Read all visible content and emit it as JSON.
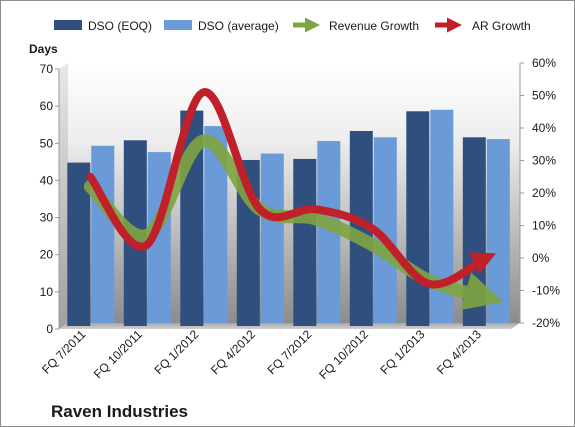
{
  "chart_data": {
    "type": "bar",
    "title": "",
    "company": "Raven Industries",
    "categories": [
      "FQ 7/2011",
      "FQ 10/2011",
      "FQ 1/2012",
      "FQ 4/2012",
      "FQ 7/2012",
      "FQ 10/2012",
      "FQ 1/2013",
      "FQ 4/2013"
    ],
    "left_axis": {
      "label": "Days",
      "min": 0,
      "max": 70,
      "step": 10,
      "tick_labels": [
        "0",
        "10",
        "20",
        "30",
        "40",
        "50",
        "60",
        "70"
      ]
    },
    "right_axis": {
      "label": "",
      "min": -20,
      "max": 60,
      "step": 10,
      "tick_labels": [
        "-20%",
        "-10%",
        "0%",
        "10%",
        "20%",
        "30%",
        "40%",
        "50%",
        "60%"
      ]
    },
    "series": [
      {
        "name": "DSO (EOQ)",
        "kind": "bar",
        "axis": "left",
        "color": "#2f4f7f",
        "values": [
          44,
          50,
          58,
          44.7,
          45,
          52.5,
          57.8,
          50.8
        ]
      },
      {
        "name": "DSO (average)",
        "kind": "bar",
        "axis": "left",
        "color": "#6a9ad8",
        "values": [
          47.7,
          46,
          53,
          45.6,
          49,
          50,
          57.4,
          49.5
        ]
      },
      {
        "name": "Revenue Growth",
        "kind": "arrow-line",
        "axis": "right",
        "color": "#7fa441",
        "values": [
          22,
          7,
          36,
          15,
          12,
          4,
          -7,
          -12
        ]
      },
      {
        "name": "AR Growth",
        "kind": "arrow-line",
        "axis": "right",
        "color": "#c0202a",
        "values": [
          25,
          4,
          51,
          15,
          15,
          9,
          -8,
          0
        ]
      }
    ],
    "legend_position": "top",
    "grid": false
  }
}
